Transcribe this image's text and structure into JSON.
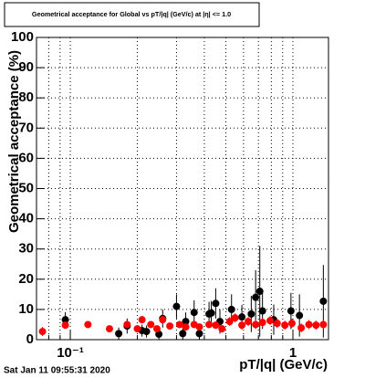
{
  "chart_data": {
    "type": "scatter",
    "title": "Geometrical acceptance for Global vs pT/|q| (GeV/c) at |η| <= 1.0",
    "x_label": "pT/|q| (GeV/c)",
    "y_label": "Geometrical acceptance (%)",
    "timestamp": "Sat Jan 11 09:55:31 2020",
    "xscale": "log",
    "xlim": [
      0.0705,
      1.445
    ],
    "ylim": [
      0,
      100
    ],
    "xticks": [
      {
        "value": 0.1,
        "label": "10⁻¹"
      },
      1
    ],
    "xgrid_minor": [
      0.08,
      0.09,
      0.2,
      0.3,
      0.4,
      0.5,
      0.6,
      0.7,
      0.8,
      0.9
    ],
    "yticks": [
      0,
      10,
      20,
      30,
      40,
      50,
      60,
      70,
      80,
      90,
      100
    ],
    "grid": true,
    "series": [
      {
        "color": "#000000",
        "x": [
          0.095,
          0.165,
          0.18,
          0.21,
          0.22,
          0.25,
          0.26,
          0.3,
          0.32,
          0.33,
          0.36,
          0.38,
          0.42,
          0.43,
          0.45,
          0.47,
          0.53,
          0.59,
          0.65,
          0.68,
          0.71,
          0.73,
          0.82,
          0.98,
          1.07,
          1.37
        ],
        "values": [
          6.6,
          2,
          4.5,
          3,
          2.7,
          1.8,
          7,
          11,
          2,
          6,
          9,
          2,
          8.5,
          8.8,
          12,
          6,
          10,
          7.5,
          8.5,
          14,
          16,
          9.5,
          6.6,
          9.5,
          8,
          12.7
        ],
        "errors": [
          2.5,
          2,
          2.5,
          2,
          2,
          2,
          3,
          4,
          2.5,
          3,
          4,
          2.5,
          4,
          4,
          5,
          4,
          5,
          4,
          6,
          9,
          15,
          6,
          5,
          6,
          7,
          12
        ]
      },
      {
        "color": "#ff0000",
        "x": [
          0.075,
          0.095,
          0.12,
          0.15,
          0.18,
          0.2,
          0.21,
          0.23,
          0.245,
          0.26,
          0.28,
          0.31,
          0.33,
          0.36,
          0.38,
          0.42,
          0.45,
          0.48,
          0.52,
          0.55,
          0.59,
          0.63,
          0.68,
          0.73,
          0.79,
          0.85,
          0.92,
          0.99,
          1.09,
          1.18,
          1.27,
          1.37
        ],
        "values": [
          2.7,
          4.8,
          5,
          3.6,
          5,
          3.6,
          6.6,
          5,
          3.6,
          6.6,
          4.5,
          5,
          4.2,
          5,
          4.2,
          5,
          4.8,
          3.6,
          6,
          7.2,
          4.8,
          6,
          5,
          5.7,
          6.3,
          5.4,
          4.8,
          5.4,
          3.9,
          5,
          4.8,
          5
        ],
        "errors": [
          1.5,
          1.2,
          1,
          1,
          1,
          1,
          1.2,
          1,
          1,
          1.2,
          1,
          1,
          1,
          1,
          1,
          1.2,
          1.2,
          1.2,
          1.5,
          1.5,
          1.5,
          1.5,
          1.5,
          1.5,
          1.5,
          1.5,
          1.5,
          1.5,
          1.5,
          1.5,
          1.5,
          1.5
        ]
      }
    ]
  }
}
